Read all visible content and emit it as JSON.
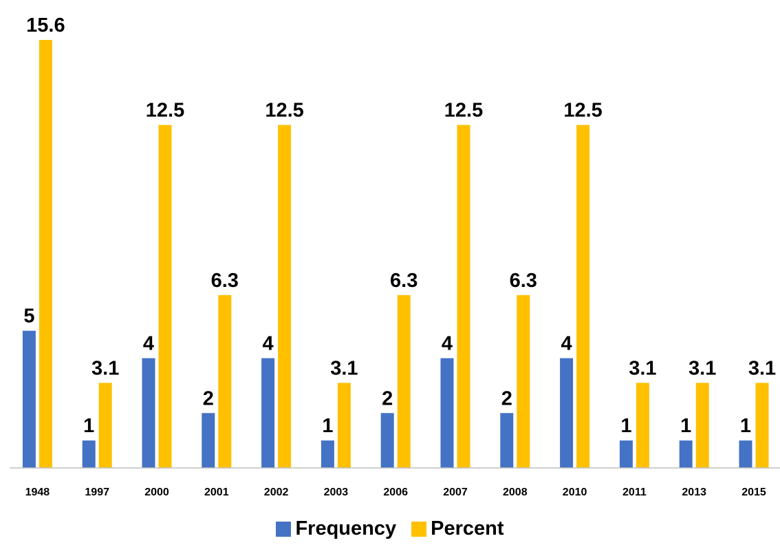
{
  "chart_data": {
    "type": "bar",
    "categories": [
      "1948",
      "1997",
      "2000",
      "2001",
      "2002",
      "2003",
      "2006",
      "2007",
      "2008",
      "2010",
      "2011",
      "2013",
      "2015"
    ],
    "series": [
      {
        "name": "Frequency",
        "color": "#4472C4",
        "values": [
          5,
          1,
          4,
          2,
          4,
          1,
          2,
          4,
          2,
          4,
          1,
          1,
          1
        ]
      },
      {
        "name": "Percent",
        "color": "#FFC000",
        "values": [
          15.6,
          3.1,
          12.5,
          6.3,
          12.5,
          3.1,
          6.3,
          12.5,
          6.3,
          12.5,
          3.1,
          3.1,
          3.1
        ]
      }
    ],
    "ylim": [
      0,
      15.6
    ],
    "grid": false,
    "legend_position": "bottom"
  }
}
